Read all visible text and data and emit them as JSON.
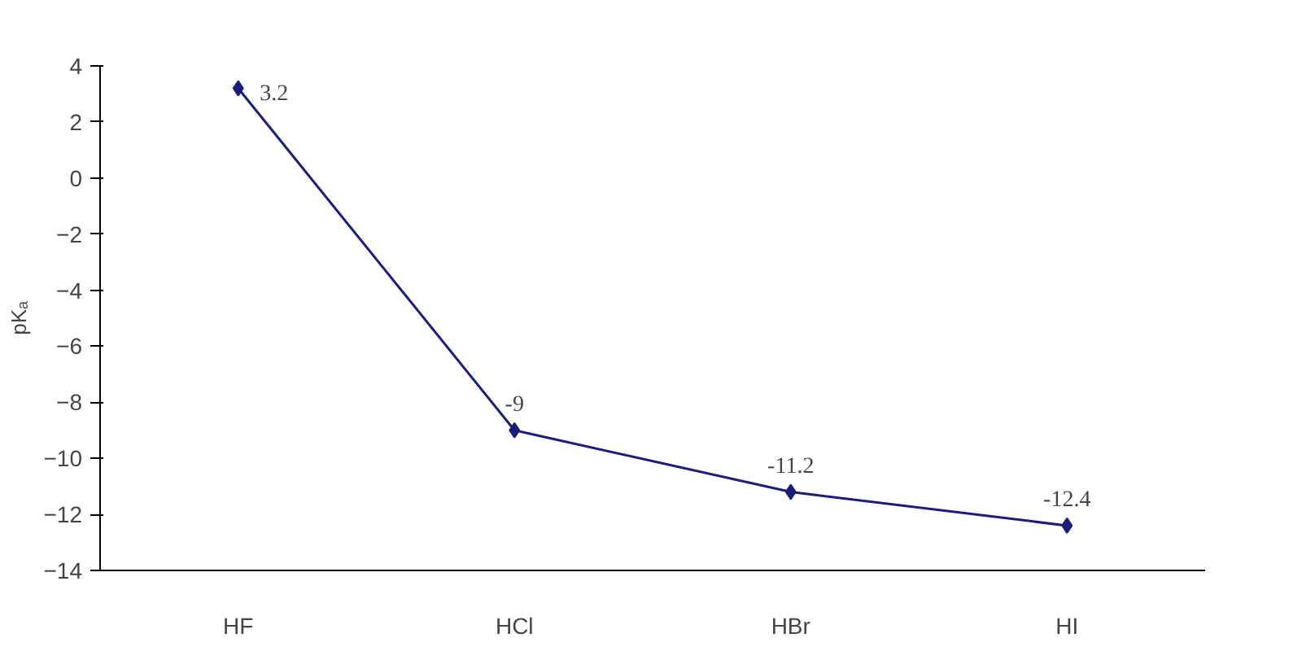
{
  "chart_data": {
    "type": "line",
    "ylabel": "pKₐ",
    "categories": [
      "HF",
      "HCl",
      "HBr",
      "HI"
    ],
    "series": [
      {
        "color": "#1c1c7a",
        "values": [
          3.2,
          -9,
          -11.2,
          -12.4
        ]
      }
    ],
    "ylim": [
      -14,
      4
    ],
    "yticks": [
      -14,
      -12,
      -10,
      -8,
      -6,
      -4,
      -2,
      0,
      2,
      4
    ],
    "grid": false,
    "marker": "diamond",
    "line_style": "solid",
    "data_labels": true
  }
}
